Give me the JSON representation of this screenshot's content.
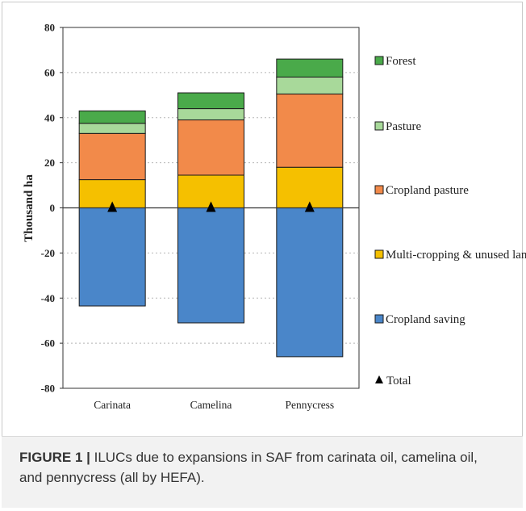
{
  "chart_data": {
    "type": "bar",
    "stacked": true,
    "categories": [
      "Carinata",
      "Camelina",
      "Pennycress"
    ],
    "ylabel": "Thousand ha",
    "xlabel": "",
    "ylim": [
      -80,
      80
    ],
    "yticks": [
      -80,
      -60,
      -40,
      -20,
      0,
      20,
      40,
      60,
      80
    ],
    "grid": "dotted horizontal",
    "legend_placement": "right",
    "series": [
      {
        "name": "Cropland saving",
        "color": "#4a86c9",
        "values": [
          -43.5,
          -51,
          -66
        ]
      },
      {
        "name": "Multi-cropping & unused land",
        "color": "#f5c000",
        "values": [
          12.5,
          14.5,
          18
        ]
      },
      {
        "name": "Cropland pasture",
        "color": "#f28a4a",
        "values": [
          20.5,
          24.5,
          32.5
        ]
      },
      {
        "name": "Pasture",
        "color": "#a8d99a",
        "values": [
          4.5,
          5,
          7.5
        ]
      },
      {
        "name": "Forest",
        "color": "#4aaa4a",
        "values": [
          5.5,
          7,
          8
        ]
      }
    ],
    "total": {
      "name": "Total",
      "marker": "triangle",
      "values": [
        0,
        0,
        0
      ]
    },
    "legend_order": [
      "Forest",
      "Pasture",
      "Cropland pasture",
      "Multi-cropping & unused land",
      "Cropland saving",
      "Total"
    ]
  },
  "caption": {
    "label": "FIGURE 1 |",
    "text": " ILUCs due to expansions in SAF from carinata oil, camelina oil, and pennycress (all by HEFA)."
  }
}
